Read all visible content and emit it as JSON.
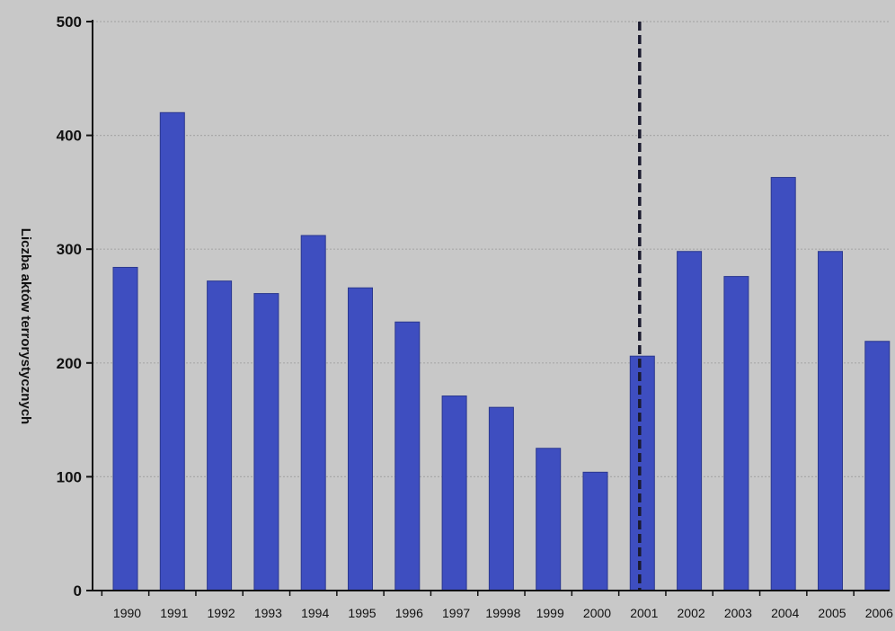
{
  "chart_data": {
    "type": "bar",
    "title": "",
    "xlabel": "",
    "ylabel": "Liczba aktów terrorystycznych",
    "ylim": [
      0,
      500
    ],
    "yticks": [
      0,
      100,
      200,
      300,
      400,
      500
    ],
    "grid": true,
    "legend": "none",
    "categories": [
      "1990",
      "1991",
      "1992",
      "1993",
      "1994",
      "1995",
      "1996",
      "1997",
      "19998",
      "1999",
      "2000",
      "2001",
      "2002",
      "2003",
      "2004",
      "2005",
      "2006"
    ],
    "values": [
      284,
      420,
      272,
      261,
      312,
      266,
      236,
      171,
      161,
      125,
      104,
      206,
      298,
      276,
      363,
      298,
      219
    ],
    "annotation": {
      "type": "vertical-dashed-line",
      "at_category": "2001"
    },
    "colors": {
      "background": "#c8c8c8",
      "bar": "#3e4ec0",
      "bar_edge": "#2b388f",
      "axis": "#111111",
      "grid": "#a8a8a8",
      "marker_line": "#1a1a2e"
    }
  }
}
